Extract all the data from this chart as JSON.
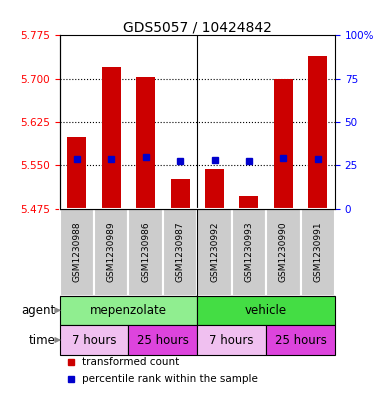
{
  "title": "GDS5057 / 10424842",
  "samples": [
    "GSM1230988",
    "GSM1230989",
    "GSM1230986",
    "GSM1230987",
    "GSM1230992",
    "GSM1230993",
    "GSM1230990",
    "GSM1230991"
  ],
  "bar_values": [
    5.6,
    5.72,
    5.703,
    5.527,
    5.543,
    5.498,
    5.7,
    5.74
  ],
  "bar_base": 5.475,
  "blue_values": [
    5.562,
    5.562,
    5.565,
    5.558,
    5.56,
    5.558,
    5.563,
    5.562
  ],
  "ylim_left": [
    5.475,
    5.775
  ],
  "ylim_right": [
    0,
    100
  ],
  "yticks_left": [
    5.475,
    5.55,
    5.625,
    5.7,
    5.775
  ],
  "yticks_right": [
    0,
    25,
    50,
    75,
    100
  ],
  "bar_color": "#cc0000",
  "blue_color": "#0000cc",
  "agent_groups": [
    {
      "label": "mepenzolate",
      "start": 0,
      "end": 4,
      "color": "#90ee90"
    },
    {
      "label": "vehicle",
      "start": 4,
      "end": 8,
      "color": "#44dd44"
    }
  ],
  "time_groups": [
    {
      "label": "7 hours",
      "start": 0,
      "end": 2,
      "color": "#f0c0f0"
    },
    {
      "label": "25 hours",
      "start": 2,
      "end": 4,
      "color": "#dd44dd"
    },
    {
      "label": "7 hours",
      "start": 4,
      "end": 6,
      "color": "#f0c0f0"
    },
    {
      "label": "25 hours",
      "start": 6,
      "end": 8,
      "color": "#dd44dd"
    }
  ],
  "legend_items": [
    {
      "label": "transformed count",
      "color": "#cc0000"
    },
    {
      "label": "percentile rank within the sample",
      "color": "#0000cc"
    }
  ],
  "sample_bg_color": "#cccccc",
  "agent_row_label": "agent",
  "time_row_label": "time",
  "figsize": [
    3.85,
    3.93
  ],
  "dpi": 100
}
